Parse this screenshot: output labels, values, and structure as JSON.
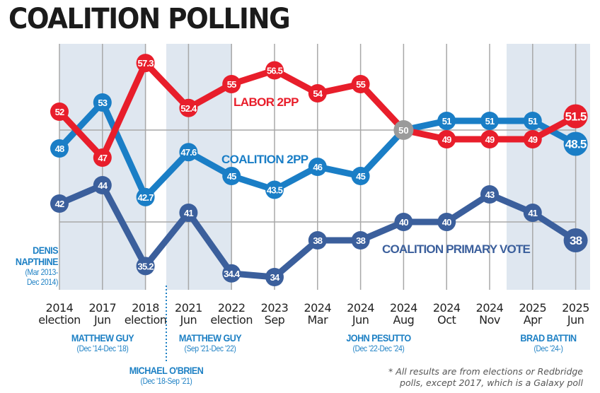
{
  "chart_data": {
    "type": "line",
    "title": "COALITION POLLING",
    "xlabel": "",
    "ylabel": "",
    "x": [
      {
        "year": "2014",
        "sub": "election"
      },
      {
        "year": "2017",
        "sub": "Jun"
      },
      {
        "year": "2018",
        "sub": "election"
      },
      {
        "year": "2021",
        "sub": "Jun"
      },
      {
        "year": "2022",
        "sub": "election"
      },
      {
        "year": "2023",
        "sub": "Sep"
      },
      {
        "year": "2024",
        "sub": "Mar"
      },
      {
        "year": "2024",
        "sub": "Jun"
      },
      {
        "year": "2024",
        "sub": "Aug"
      },
      {
        "year": "2024",
        "sub": "Oct"
      },
      {
        "year": "2024",
        "sub": "Nov"
      },
      {
        "year": "2025",
        "sub": "Apr"
      },
      {
        "year": "2025",
        "sub": "Jun"
      }
    ],
    "series": [
      {
        "name": "LABOR 2PP",
        "color": "#e81e2b",
        "values": [
          52,
          47,
          57.3,
          52.4,
          55,
          56.5,
          54,
          55,
          50,
          49,
          49,
          49,
          51.5
        ],
        "labels": [
          "52",
          "47",
          "57.3",
          "52.4",
          "55",
          "56.5",
          "54",
          "55",
          "50",
          "49",
          "49",
          "49",
          "51.5"
        ]
      },
      {
        "name": "COALITION 2PP",
        "color": "#1a7ec6",
        "values": [
          48,
          53,
          42.7,
          47.6,
          45,
          43.5,
          46,
          45,
          50,
          51,
          51,
          51,
          48.5
        ],
        "labels": [
          "48",
          "53",
          "42.7",
          "47.6",
          "45",
          "43.5",
          "46",
          "45",
          "50",
          "51",
          "51",
          "51",
          "48.5"
        ]
      },
      {
        "name": "COALITION PRIMARY VOTE",
        "color": "#3b5f9c",
        "values": [
          42,
          44,
          35.2,
          41,
          34.4,
          34,
          38,
          38,
          40,
          40,
          43,
          41,
          38
        ],
        "labels": [
          "42",
          "44",
          "35.2",
          "41",
          "34.4",
          "34",
          "38",
          "38",
          "40",
          "40",
          "43",
          "41",
          "38"
        ]
      }
    ],
    "tie_point": {
      "index": 8,
      "value": 50,
      "label": "50",
      "color": "#9a9a9a"
    },
    "ylim": [
      30,
      60
    ],
    "gridlines_y": [
      40,
      50
    ],
    "grid": true,
    "legend": "inline-labels",
    "shaded_periods": [
      {
        "from_index": 0,
        "to_index": 2,
        "leader": "MATTHEW GUY"
      },
      {
        "from_index": 3,
        "to_index": 4,
        "leader": "MATTHEW GUY"
      },
      {
        "from_index": 11,
        "to_index": 12,
        "leader": "BRAD BATTIN"
      }
    ],
    "divider_after_index": 2
  },
  "leaders": [
    {
      "name": "DENIS",
      "name2": "NAPTHINE",
      "term": "(Mar 2013-",
      "term2": "Dec 2014)"
    },
    {
      "name": "MATTHEW GUY",
      "term": "(Dec '14-Dec '18)"
    },
    {
      "name": "MICHAEL O'BRIEN",
      "term": "(Dec '18-Sep '21)"
    },
    {
      "name": "MATTHEW GUY",
      "term": "(Sep '21-Dec '22)"
    },
    {
      "name": "JOHN PESUTTO",
      "term": "(Dec '22-Dec '24)"
    },
    {
      "name": "BRAD BATTIN",
      "term": "(Dec '24-)"
    }
  ],
  "footnote": {
    "line1": "* All results are from elections or Redbridge",
    "line2": "polls, except 2017, which is a Galaxy poll"
  },
  "colors": {
    "labor": "#e81e2b",
    "coalition_2pp": "#1a7ec6",
    "coalition_primary": "#3b5f9c",
    "tie": "#9a9a9a",
    "shade": "#dfe7f0",
    "grid": "#a8a8a8",
    "leader_text": "#1d80c4"
  }
}
